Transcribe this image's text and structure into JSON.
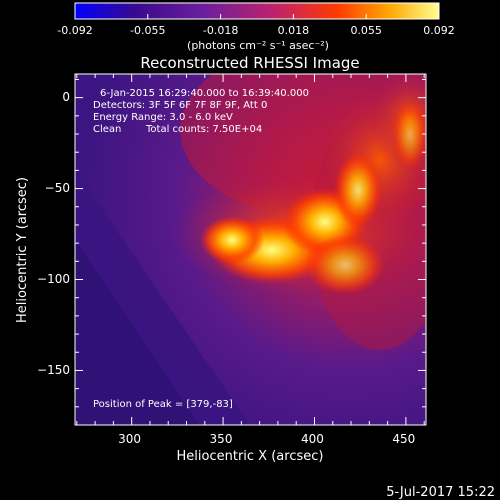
{
  "colorbar": {
    "min": -0.092,
    "max": 0.092,
    "tick_labels": [
      "-0.092",
      "-0.055",
      "-0.018",
      "0.018",
      "0.055",
      "0.092"
    ],
    "label": "(photons cm⁻² s⁻¹ asec⁻²)",
    "colors": [
      "#0000ff",
      "#3b0a8c",
      "#6a1e9e",
      "#c0226a",
      "#ff3a00",
      "#ffa500",
      "#ffff90"
    ]
  },
  "chart_data": {
    "type": "heatmap",
    "title": "Reconstructed RHESSI Image",
    "xlabel": "Heliocentric X (arcsec)",
    "ylabel": "Heliocentric Y (arcsec)",
    "xlim": [
      269,
      461
    ],
    "ylim": [
      -180,
      13
    ],
    "x_ticks": [
      300,
      350,
      400,
      450
    ],
    "y_ticks": [
      0,
      -50,
      -100,
      -150
    ],
    "peak": [
      379,
      -83
    ],
    "annotations": {
      "time_range": "6-Jan-2015 16:29:40.000 to 16:39:40.000",
      "detectors": "Detectors: 3F 5F 6F 7F 8F 9F, Att 0",
      "energy": "Energy Range: 3.0 - 6.0 keV",
      "clean": "Clean",
      "counts": "Total counts: 7.50E+04",
      "peak_text": "Position of Peak = [379,-83]"
    }
  },
  "footer": {
    "date": "5-Jul-2017 15:22"
  }
}
